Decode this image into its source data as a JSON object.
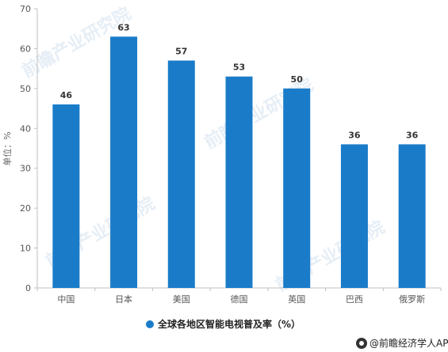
{
  "chart_data": {
    "type": "bar",
    "categories": [
      "中国",
      "日本",
      "美国",
      "德国",
      "英国",
      "巴西",
      "俄罗斯"
    ],
    "series": [
      {
        "name": "全球各地区智能电视普及率（%）",
        "values": [
          46,
          63,
          57,
          53,
          50,
          36,
          36
        ],
        "color": "#1a7cc9"
      }
    ],
    "ylabel": "单位：%",
    "ylim": [
      0,
      70
    ],
    "yticks": [
      0,
      10,
      20,
      30,
      40,
      50,
      60,
      70
    ],
    "grid": false,
    "legend_position": "bottom-center"
  },
  "watermark": {
    "text": "前瞻产业研究院",
    "icon": "qianzhan-logo-icon"
  },
  "footer": {
    "text": "@前瞻经济学人APP",
    "icon": "qianzhan-logo-icon"
  }
}
